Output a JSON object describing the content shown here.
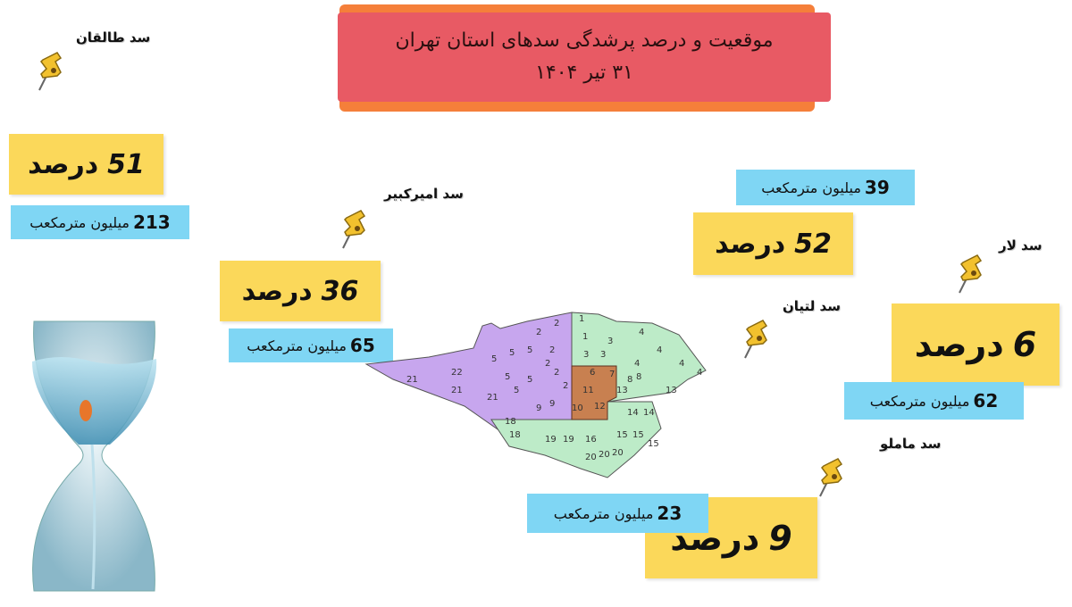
{
  "title": {
    "line1": "موقعیت و درصد پرشدگی سدهای استان تهران",
    "line2": "۳۱ تیر ۱۴۰۴"
  },
  "percent_word": "درصد",
  "volume_unit": "میلیون مترمکعب",
  "colors": {
    "title_bg": "#e85a64",
    "title_accent": "#f57f3a",
    "percent_bg": "#fbd85a",
    "volume_bg": "#7fd6f4"
  },
  "dams": [
    {
      "name": "سد طالقان",
      "percent": "51",
      "volume": "213"
    },
    {
      "name": "سد امیرکبیر",
      "percent": "36",
      "volume": "65"
    },
    {
      "name": "سد لار",
      "percent": "6",
      "volume": "62"
    },
    {
      "name": "سد لتیان",
      "percent": "52",
      "volume": "39"
    },
    {
      "name": "سد ماملو",
      "percent": "9",
      "volume": "23"
    }
  ],
  "map": {
    "district_numbers": [
      "22",
      "21",
      "21",
      "21",
      "5",
      "5",
      "5",
      "5",
      "5",
      "5",
      "2",
      "2",
      "2",
      "2",
      "2",
      "2",
      "9",
      "9",
      "1",
      "1",
      "3",
      "3",
      "3",
      "4",
      "4",
      "4",
      "4",
      "4",
      "6",
      "7",
      "8",
      "8",
      "13",
      "13",
      "14",
      "14",
      "15",
      "15",
      "15",
      "16",
      "18",
      "18",
      "19",
      "19",
      "20",
      "20",
      "20",
      "12",
      "11",
      "10"
    ]
  },
  "icons": {
    "pin": "push-pin-icon",
    "hourglass": "hourglass-water-icon"
  }
}
